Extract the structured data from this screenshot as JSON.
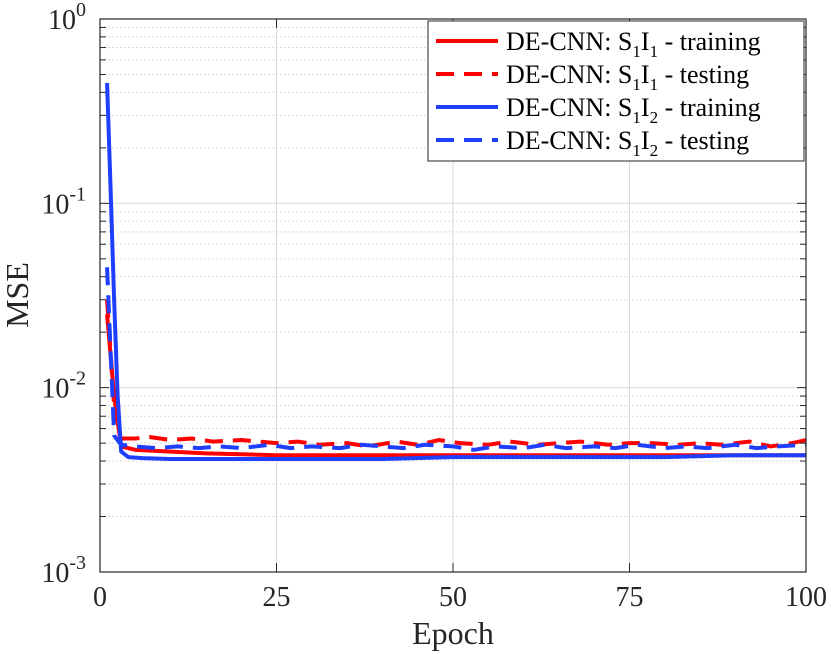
{
  "chart_data": {
    "type": "line",
    "title": "",
    "xlabel": "Epoch",
    "ylabel": "MSE",
    "xlim": [
      0,
      100
    ],
    "ylim": [
      0.001,
      1
    ],
    "yscale": "log",
    "xticks": [
      0,
      25,
      50,
      75,
      100
    ],
    "xtick_labels": [
      "0",
      "25",
      "50",
      "75",
      "100"
    ],
    "yticks": [
      0.001,
      0.01,
      0.1,
      1
    ],
    "ytick_labels": [
      {
        "base": "10",
        "exp": "-3"
      },
      {
        "base": "10",
        "exp": "-2"
      },
      {
        "base": "10",
        "exp": "-1"
      },
      {
        "base": "10",
        "exp": "0"
      }
    ],
    "grid": true,
    "minor_grid": true,
    "legend_position": "top-right",
    "series": [
      {
        "name": "DE-CNN: S1I1 - training",
        "legend": {
          "prefix": "DE-CNN: ",
          "sub1": "1",
          "sub2": "1",
          "suffix": " - training"
        },
        "color": "#ff0000",
        "dash": "solid",
        "x": [
          1,
          2,
          3,
          5,
          10,
          15,
          20,
          25,
          30,
          40,
          50,
          60,
          70,
          80,
          90,
          100
        ],
        "y": [
          0.025,
          0.009,
          0.0048,
          0.0046,
          0.0045,
          0.0044,
          0.00435,
          0.0043,
          0.0043,
          0.0043,
          0.0043,
          0.0043,
          0.0043,
          0.0043,
          0.0043,
          0.0043
        ]
      },
      {
        "name": "DE-CNN: S1I1 - testing",
        "legend": {
          "prefix": "DE-CNN: ",
          "sub1": "1",
          "sub2": "1",
          "suffix": " - testing"
        },
        "color": "#ff0000",
        "dash": "dashed",
        "x": [
          1,
          2,
          3,
          5,
          7,
          10,
          13,
          16,
          20,
          25,
          28,
          31,
          35,
          38,
          42,
          45,
          48,
          51,
          55,
          58,
          62,
          65,
          68,
          72,
          75,
          78,
          82,
          85,
          88,
          92,
          95,
          98,
          100
        ],
        "y": [
          0.03,
          0.008,
          0.0053,
          0.0053,
          0.0054,
          0.0052,
          0.0053,
          0.0051,
          0.0052,
          0.005,
          0.0051,
          0.0049,
          0.005,
          0.0048,
          0.0051,
          0.0049,
          0.0052,
          0.005,
          0.0049,
          0.0051,
          0.0049,
          0.005,
          0.0051,
          0.0049,
          0.005,
          0.005,
          0.0049,
          0.005,
          0.0049,
          0.0051,
          0.0048,
          0.005,
          0.0052
        ]
      },
      {
        "name": "DE-CNN: S1I2 - training",
        "legend": {
          "prefix": "DE-CNN: ",
          "sub1": "1",
          "sub2": "2",
          "suffix": " - training"
        },
        "color": "#1f3fff",
        "dash": "solid",
        "x": [
          1,
          1.5,
          2,
          2.5,
          3,
          4,
          6,
          10,
          20,
          30,
          40,
          50,
          60,
          70,
          80,
          90,
          100
        ],
        "y": [
          0.45,
          0.12,
          0.03,
          0.009,
          0.0045,
          0.0042,
          0.00415,
          0.0041,
          0.0041,
          0.0041,
          0.0041,
          0.0042,
          0.0042,
          0.0042,
          0.0042,
          0.0043,
          0.0043
        ]
      },
      {
        "name": "DE-CNN: S1I2 - testing",
        "legend": {
          "prefix": "DE-CNN: ",
          "sub1": "1",
          "sub2": "2",
          "suffix": " - testing"
        },
        "color": "#1f3fff",
        "dash": "dashed",
        "x": [
          1,
          2,
          3,
          5,
          8,
          11,
          14,
          17,
          20,
          24,
          27,
          30,
          34,
          37,
          40,
          43,
          46,
          50,
          53,
          56,
          60,
          63,
          66,
          70,
          73,
          76,
          80,
          83,
          86,
          90,
          93,
          96,
          100
        ],
        "y": [
          0.045,
          0.0055,
          0.0049,
          0.0048,
          0.0047,
          0.0048,
          0.0047,
          0.0048,
          0.0047,
          0.0049,
          0.0047,
          0.0048,
          0.0047,
          0.0049,
          0.0048,
          0.0047,
          0.0049,
          0.0048,
          0.0046,
          0.0048,
          0.0047,
          0.0049,
          0.0047,
          0.0048,
          0.0047,
          0.0049,
          0.0047,
          0.0048,
          0.0047,
          0.0049,
          0.0047,
          0.0048,
          0.0049
        ]
      }
    ]
  }
}
